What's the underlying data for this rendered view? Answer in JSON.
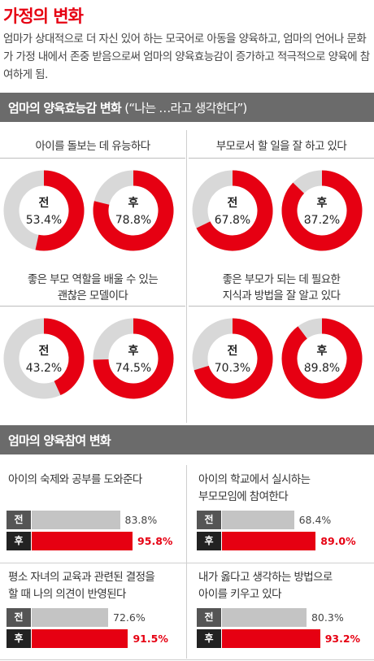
{
  "title": "가정의 변화",
  "intro": "엄마가 상대적으로 더 자신 있어 하는 모국어로 아동을 양육하고, 엄마의 언어나 문화가 가정 내에서 존중 받음으로써 엄마의 양육효능감이 증가하고 적극적으로 양육에 참여하게 됨.",
  "section1": {
    "title": "엄마의 양육효능감 변화",
    "subtitle": "(“나는 …라고 생각한다”)"
  },
  "section2": {
    "title": "엄마의 양육참여 변화"
  },
  "colors": {
    "accent": "#e60012",
    "gray_track": "#d8d8d8",
    "before_bar": "#c4c4c4",
    "before_tag": "#555555",
    "after_tag": "#222222",
    "section_bar": "#6b6b6b"
  },
  "chart_data": [
    {
      "type": "pie",
      "title": "아이를 돌보는 데 유능하다",
      "before_label": "전",
      "after_label": "후",
      "before_text": "53.4%",
      "after_text": "78.8%",
      "values": [
        53.4,
        78.8
      ]
    },
    {
      "type": "pie",
      "title": "부모로서 할 일을 잘 하고 있다",
      "before_label": "전",
      "after_label": "후",
      "before_text": "67.8%",
      "after_text": "87.2%",
      "values": [
        67.8,
        87.2
      ]
    },
    {
      "type": "pie",
      "title": "좋은 부모 역할을 배울 수 있는 괜찮은 모델이다",
      "title_lines": [
        "좋은 부모 역할을 배울 수 있는",
        "괜찮은 모델이다"
      ],
      "before_label": "전",
      "after_label": "후",
      "before_text": "43.2%",
      "after_text": "74.5%",
      "values": [
        43.2,
        74.5
      ]
    },
    {
      "type": "pie",
      "title": "좋은 부모가 되는 데 필요한 지식과 방법을 잘 알고 있다",
      "title_lines": [
        "좋은 부모가 되는 데 필요한",
        "지식과  방법을 잘 알고 있다"
      ],
      "before_label": "전",
      "after_label": "후",
      "before_text": "70.3%",
      "after_text": "89.8%",
      "values": [
        70.3,
        89.8
      ]
    },
    {
      "type": "bar",
      "title": "아이의 숙제와 공부를 도와준다",
      "title_lines": [
        "아이의 숙제와 공부를 도와준다"
      ],
      "categories": [
        "전",
        "후"
      ],
      "values": [
        83.8,
        95.8
      ],
      "value_texts": [
        "83.8%",
        "95.8%"
      ],
      "ylim": [
        0,
        100
      ]
    },
    {
      "type": "bar",
      "title": "아이의 학교에서 실시하는 부모모임에 참여한다",
      "title_lines": [
        "아이의 학교에서 실시하는",
        "부모모임에 참여한다"
      ],
      "categories": [
        "전",
        "후"
      ],
      "values": [
        68.4,
        89.0
      ],
      "value_texts": [
        "68.4%",
        "89.0%"
      ],
      "ylim": [
        0,
        100
      ]
    },
    {
      "type": "bar",
      "title": "평소 자녀의 교육과 관련된 결정을 할 때 나의 의견이 반영된다",
      "title_lines": [
        "평소 자녀의 교육과 관련된 결정을",
        "할 때 나의 의견이 반영된다"
      ],
      "categories": [
        "전",
        "후"
      ],
      "values": [
        72.6,
        91.5
      ],
      "value_texts": [
        "72.6%",
        "91.5%"
      ],
      "ylim": [
        0,
        100
      ]
    },
    {
      "type": "bar",
      "title": "내가 옳다고 생각하는 방법으로 아이를 키우고 있다",
      "title_lines": [
        "내가 옳다고 생각하는 방법으로",
        "아이를 키우고 있다"
      ],
      "categories": [
        "전",
        "후"
      ],
      "values": [
        80.3,
        93.2
      ],
      "value_texts": [
        "80.3%",
        "93.2%"
      ],
      "ylim": [
        0,
        100
      ]
    }
  ]
}
